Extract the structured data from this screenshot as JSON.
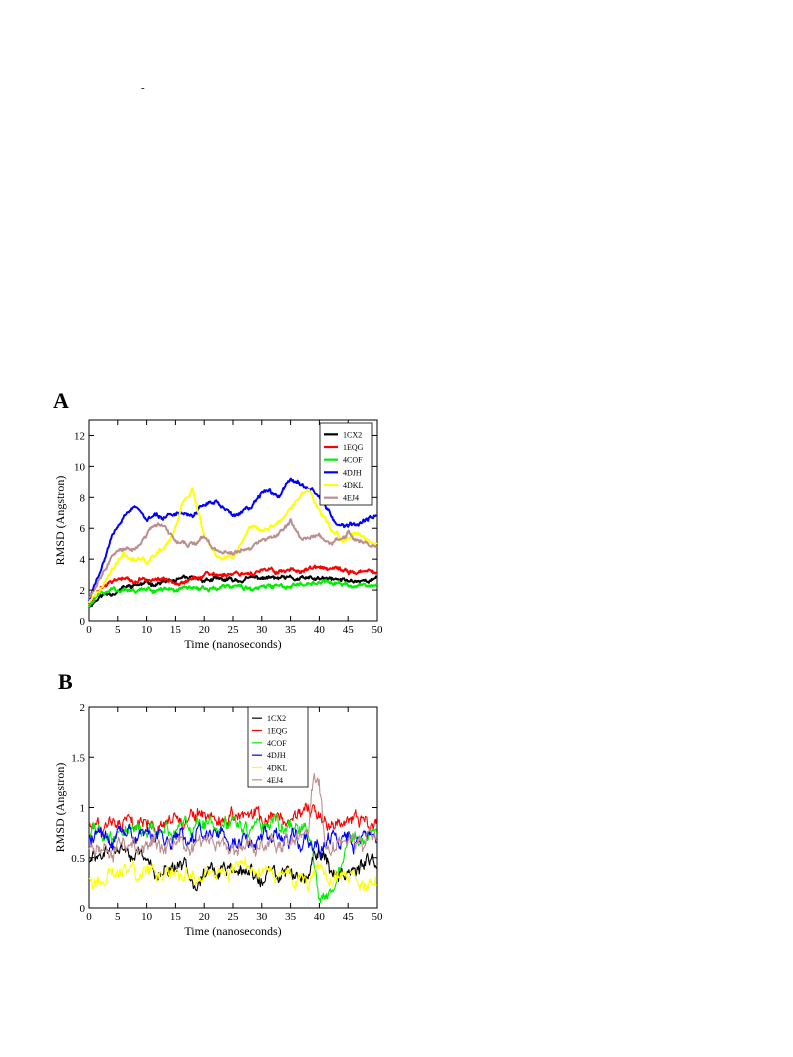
{
  "page": {
    "stray_mark": "-"
  },
  "chart_data": [
    {
      "panel": "A",
      "type": "line",
      "xlabel": "Time (nanoseconds)",
      "ylabel": "RMSD (Angstron)",
      "xlim": [
        0,
        50
      ],
      "ylim": [
        0,
        13
      ],
      "xticks": [
        0,
        5,
        10,
        15,
        20,
        25,
        30,
        35,
        40,
        45,
        50
      ],
      "yticks": [
        0,
        2,
        4,
        6,
        8,
        10,
        12
      ],
      "grid": false,
      "legend_position": "top-right",
      "legend_style": "thick-line",
      "noise": 0.18,
      "seed": 11,
      "series": [
        {
          "name": "1CX2",
          "color": "#000000",
          "x": [
            0,
            2,
            5,
            8,
            10,
            15,
            20,
            25,
            30,
            35,
            40,
            45,
            50
          ],
          "values": [
            1.0,
            1.6,
            2.0,
            2.3,
            2.4,
            2.6,
            2.7,
            2.6,
            2.8,
            2.7,
            2.7,
            2.6,
            2.7
          ]
        },
        {
          "name": "1EQG",
          "color": "#ff0000",
          "x": [
            0,
            2,
            5,
            8,
            10,
            15,
            20,
            25,
            30,
            35,
            40,
            45,
            50
          ],
          "values": [
            1.0,
            2.2,
            2.8,
            2.5,
            2.7,
            2.6,
            2.9,
            3.1,
            3.2,
            3.3,
            3.4,
            3.2,
            3.1
          ]
        },
        {
          "name": "4COF",
          "color": "#00ee00",
          "x": [
            0,
            2,
            5,
            8,
            10,
            15,
            20,
            25,
            30,
            35,
            40,
            45,
            50
          ],
          "values": [
            1.0,
            1.7,
            2.1,
            2.0,
            2.1,
            2.0,
            2.1,
            2.2,
            2.1,
            2.3,
            2.6,
            2.3,
            2.3
          ]
        },
        {
          "name": "4DJH",
          "color": "#0000ff",
          "x": [
            0,
            2,
            4,
            6,
            8,
            10,
            12,
            15,
            18,
            20,
            22,
            25,
            28,
            30,
            33,
            35,
            37,
            40,
            43,
            45,
            47,
            50
          ],
          "values": [
            1.4,
            3.2,
            5.5,
            6.8,
            7.5,
            6.5,
            6.8,
            7.0,
            6.9,
            7.5,
            7.8,
            6.8,
            7.2,
            8.3,
            8.2,
            9.3,
            9.0,
            8.2,
            6.0,
            6.2,
            6.4,
            7.0
          ]
        },
        {
          "name": "4DKL",
          "color": "#ffff00",
          "x": [
            0,
            2,
            4,
            6,
            8,
            10,
            12,
            14,
            16,
            18,
            20,
            22,
            25,
            28,
            30,
            33,
            35,
            38,
            40,
            42,
            44,
            46,
            48,
            50
          ],
          "values": [
            1.2,
            2.0,
            3.2,
            4.4,
            4.0,
            3.8,
            4.5,
            5.2,
            7.5,
            8.5,
            5.5,
            4.2,
            4.0,
            6.2,
            5.8,
            6.2,
            7.2,
            8.6,
            7.3,
            5.9,
            5.3,
            5.7,
            5.3,
            5.0
          ]
        },
        {
          "name": "4EJ4",
          "color": "#bc8f8f",
          "x": [
            0,
            2,
            4,
            6,
            8,
            10,
            12,
            15,
            18,
            20,
            22,
            25,
            28,
            30,
            33,
            35,
            37,
            40,
            42,
            45,
            48,
            50
          ],
          "values": [
            1.6,
            2.8,
            4.3,
            4.6,
            4.8,
            5.6,
            6.3,
            5.2,
            5.0,
            5.5,
            4.6,
            4.3,
            4.6,
            5.2,
            5.6,
            6.4,
            5.3,
            5.6,
            5.0,
            5.7,
            5.2,
            4.9
          ]
        }
      ]
    },
    {
      "panel": "B",
      "type": "line",
      "xlabel": "Time (nanoseconds)",
      "ylabel": "RMSD (Angstron)",
      "xlim": [
        0,
        50
      ],
      "ylim": [
        0,
        2
      ],
      "xticks": [
        0,
        5,
        10,
        15,
        20,
        25,
        30,
        35,
        40,
        45,
        50
      ],
      "yticks": [
        0,
        0.5,
        1,
        1.5,
        2
      ],
      "grid": false,
      "legend_position": "top-center",
      "legend_style": "thin-line",
      "noise": 0.1,
      "seed": 29,
      "series": [
        {
          "name": "1CX2",
          "color": "#000000",
          "x": [
            0,
            5,
            8,
            10,
            15,
            20,
            25,
            30,
            35,
            38,
            40,
            42,
            45,
            50
          ],
          "values": [
            0.45,
            0.6,
            0.55,
            0.4,
            0.35,
            0.35,
            0.35,
            0.3,
            0.35,
            0.35,
            0.6,
            0.35,
            0.4,
            0.4
          ]
        },
        {
          "name": "1EQG",
          "color": "#ff0000",
          "x": [
            0,
            5,
            10,
            15,
            20,
            25,
            30,
            35,
            40,
            45,
            50
          ],
          "values": [
            0.85,
            0.88,
            0.9,
            0.9,
            0.9,
            0.9,
            0.9,
            0.9,
            0.88,
            0.9,
            0.9
          ]
        },
        {
          "name": "4COF",
          "color": "#00ee00",
          "x": [
            0,
            5,
            10,
            15,
            20,
            25,
            30,
            35,
            38,
            40,
            41,
            43,
            45,
            50
          ],
          "values": [
            0.72,
            0.75,
            0.78,
            0.8,
            0.8,
            0.8,
            0.8,
            0.8,
            0.8,
            0.1,
            0.1,
            0.15,
            0.75,
            0.78
          ]
        },
        {
          "name": "4DJH",
          "color": "#0000ff",
          "x": [
            0,
            5,
            10,
            15,
            20,
            25,
            30,
            35,
            40,
            45,
            50
          ],
          "values": [
            0.7,
            0.7,
            0.72,
            0.72,
            0.75,
            0.7,
            0.72,
            0.72,
            0.7,
            0.7,
            0.7
          ]
        },
        {
          "name": "4DKL",
          "color": "#ffff00",
          "x": [
            0,
            5,
            10,
            15,
            20,
            25,
            30,
            35,
            38,
            40,
            42,
            45,
            50
          ],
          "values": [
            0.3,
            0.35,
            0.35,
            0.35,
            0.35,
            0.38,
            0.35,
            0.32,
            0.3,
            0.45,
            0.3,
            0.3,
            0.3
          ]
        },
        {
          "name": "4EJ4",
          "color": "#bc8f8f",
          "x": [
            0,
            5,
            10,
            15,
            20,
            25,
            30,
            35,
            38,
            39,
            40,
            41,
            42,
            45,
            50
          ],
          "values": [
            0.6,
            0.62,
            0.62,
            0.62,
            0.62,
            0.62,
            0.6,
            0.62,
            0.62,
            1.25,
            1.25,
            0.65,
            0.6,
            0.65,
            0.62
          ]
        }
      ]
    }
  ]
}
